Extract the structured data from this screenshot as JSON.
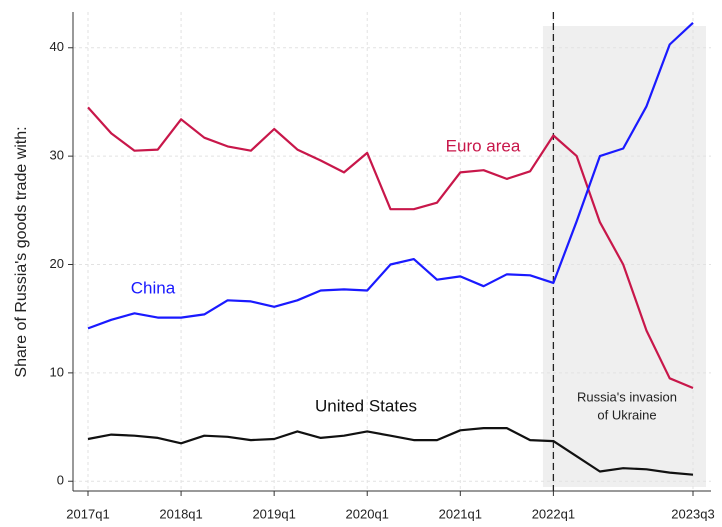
{
  "chart_data": {
    "type": "line",
    "y_label": "Share of Russia's goods trade with:",
    "annotation_lines": [
      "Russia's invasion",
      "of Ukraine"
    ],
    "categories": [
      "2017q1",
      null,
      null,
      null,
      "2018q1",
      null,
      null,
      null,
      "2019q1",
      null,
      null,
      null,
      "2020q1",
      null,
      null,
      null,
      "2021q1",
      null,
      null,
      null,
      "2022q1",
      null,
      null,
      null,
      null,
      null,
      "2023q3"
    ],
    "series": [
      {
        "name": "Euro area",
        "color": "#c8174a",
        "values": [
          34.5,
          32.1,
          30.5,
          30.6,
          33.4,
          31.7,
          30.9,
          30.5,
          32.5,
          30.6,
          29.6,
          28.5,
          30.3,
          25.1,
          25.1,
          25.7,
          28.5,
          28.7,
          27.9,
          28.6,
          31.9,
          30.0,
          23.9,
          20.0,
          13.9,
          9.5,
          8.6
        ]
      },
      {
        "name": "China",
        "color": "#1a1aff",
        "values": [
          14.1,
          14.9,
          15.5,
          15.1,
          15.1,
          15.4,
          16.7,
          16.6,
          16.1,
          16.7,
          17.6,
          17.7,
          17.6,
          20.0,
          20.5,
          18.6,
          18.9,
          18.0,
          19.1,
          19.0,
          18.3,
          24.0,
          30.0,
          30.7,
          34.6,
          40.3,
          42.3
        ]
      },
      {
        "name": "United States",
        "color": "#111111",
        "values": [
          3.9,
          4.3,
          4.2,
          4.0,
          3.5,
          4.2,
          4.1,
          3.8,
          3.9,
          4.6,
          4.0,
          4.2,
          4.6,
          4.2,
          3.8,
          3.8,
          4.7,
          4.9,
          4.9,
          3.8,
          3.7,
          2.3,
          0.9,
          1.2,
          1.1,
          0.8,
          0.6
        ]
      }
    ],
    "ylim": [
      -0.9,
      43.3
    ],
    "yticks": [
      0,
      10,
      20,
      30,
      40
    ],
    "grid": true,
    "event_category": 20
  }
}
